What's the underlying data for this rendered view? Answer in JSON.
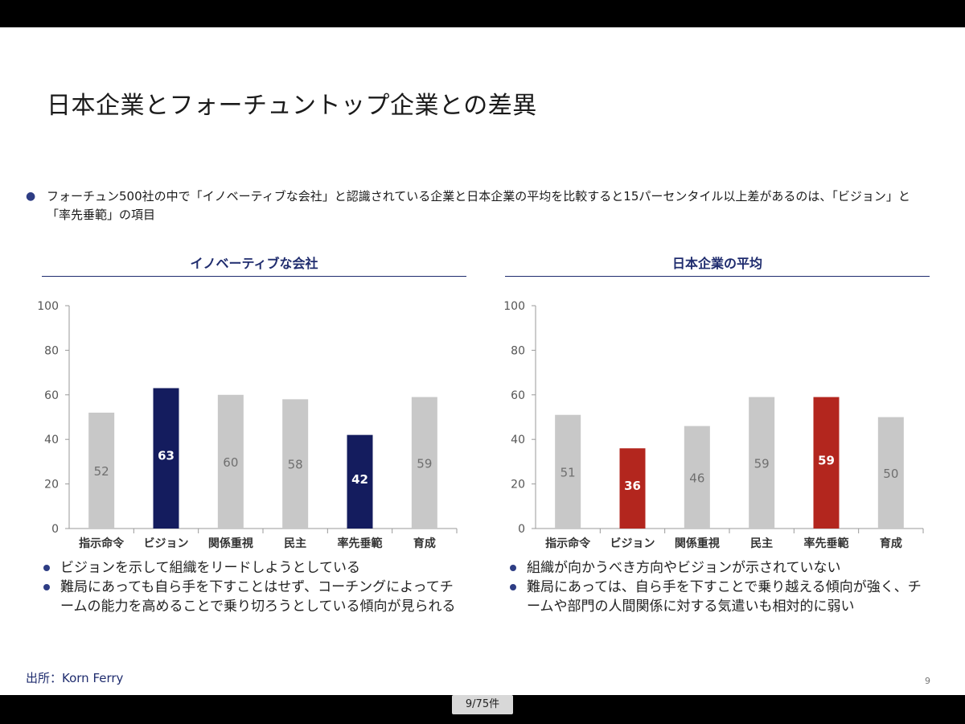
{
  "title": "日本企業とフォーチュントップ企業との差異",
  "intro": "フォーチュン500社の中で「イノベーティブな会社」と認識されている企業と日本企業の平均を比較すると15パーセンタイル以上差があるのは、「ビジョン」と「率先垂範」の項目",
  "intro_bullet": "●",
  "charts": [
    {
      "panel_title": "イノベーティブな会社",
      "notes": [
        "ビジョンを示して組織をリードしようとしている",
        "難局にあっても自ら手を下すことはせず、コーチングによってチームの能力を高めることで乗り切ろうとしている傾向が見られる"
      ]
    },
    {
      "panel_title": "日本企業の平均",
      "notes": [
        "組織が向かうべき方向やビジョンが示されていない",
        "難局にあっては、自ら手を下すことで乗り越える傾向が強く、チームや部門の人間関係に対する気遣いも相対的に弱い"
      ]
    }
  ],
  "chart_data": [
    {
      "type": "bar",
      "title": "イノベーティブな会社",
      "categories": [
        "指示命令",
        "ビジョン",
        "関係重視",
        "民主",
        "率先垂範",
        "育成"
      ],
      "values": [
        52,
        63,
        60,
        58,
        42,
        59
      ],
      "highlight": [
        false,
        true,
        false,
        false,
        true,
        false
      ],
      "ylim": [
        0,
        100
      ],
      "yticks": [
        0,
        20,
        40,
        60,
        80,
        100
      ],
      "grid": false,
      "colors": {
        "base": "#c8c8c8",
        "highlight": "#141c5e",
        "base_label": "#6f6f6f",
        "highlight_label": "#ffffff"
      }
    },
    {
      "type": "bar",
      "title": "日本企業の平均",
      "categories": [
        "指示命令",
        "ビジョン",
        "関係重視",
        "民主",
        "率先垂範",
        "育成"
      ],
      "values": [
        51,
        36,
        46,
        59,
        59,
        50
      ],
      "highlight": [
        false,
        true,
        false,
        false,
        true,
        false
      ],
      "ylim": [
        0,
        100
      ],
      "yticks": [
        0,
        20,
        40,
        60,
        80,
        100
      ],
      "grid": false,
      "colors": {
        "base": "#c8c8c8",
        "highlight": "#b3261e",
        "base_label": "#6f6f6f",
        "highlight_label": "#ffffff"
      }
    }
  ],
  "source": "出所：Korn Ferry",
  "page_number": "9",
  "pager": "9/75件"
}
